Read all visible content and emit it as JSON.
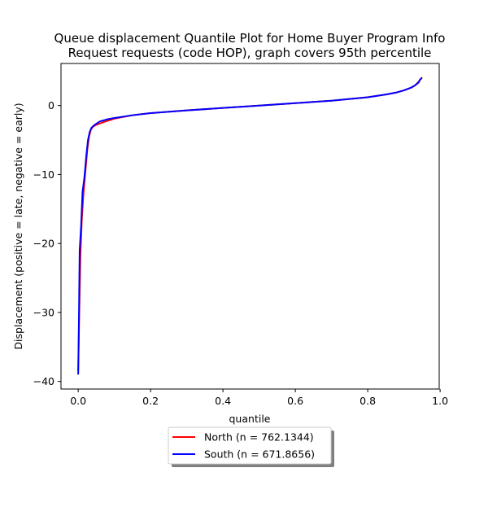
{
  "chart_data": {
    "type": "line",
    "title": [
      "Queue displacement Quantile Plot for Home Buyer Program Info",
      "Request  requests (code HOP), graph covers 95th percentile"
    ],
    "xlabel": "quantile",
    "ylabel": "Displacement (positive = late, negative = early)",
    "xlim": [
      -0.0475,
      0.9975
    ],
    "ylim": [
      -41.1,
      6.1
    ],
    "xticks": [
      0.0,
      0.2,
      0.4,
      0.6,
      0.8,
      1.0
    ],
    "xtick_labels": [
      "0.0",
      "0.2",
      "0.4",
      "0.6",
      "0.8",
      "1.0"
    ],
    "yticks": [
      0,
      -10,
      -20,
      -30,
      -40
    ],
    "ytick_labels": [
      "0",
      "−10",
      "−20",
      "−30",
      "−40"
    ],
    "grid": false,
    "legend_position": "below plot, center",
    "series": [
      {
        "name": "North (n = 762.1344)",
        "color": "#ff0000",
        "x": [
          0.0,
          0.003,
          0.006,
          0.01,
          0.015,
          0.02,
          0.025,
          0.03,
          0.035,
          0.04,
          0.05,
          0.07,
          0.1,
          0.15,
          0.2,
          0.3,
          0.4,
          0.5,
          0.6,
          0.7,
          0.8,
          0.85,
          0.88,
          0.9,
          0.92,
          0.93,
          0.94,
          0.95
        ],
        "y": [
          -38.5,
          -30.0,
          -22.0,
          -16.5,
          -12.5,
          -9.5,
          -6.5,
          -4.5,
          -3.5,
          -3.1,
          -2.8,
          -2.4,
          -1.9,
          -1.4,
          -1.1,
          -0.7,
          -0.35,
          0.0,
          0.35,
          0.7,
          1.2,
          1.6,
          1.9,
          2.2,
          2.6,
          2.9,
          3.4,
          4.1
        ]
      },
      {
        "name": "South (n = 671.8656)",
        "color": "#0000ff",
        "x": [
          0.0,
          0.002,
          0.004,
          0.008,
          0.012,
          0.017,
          0.022,
          0.027,
          0.032,
          0.037,
          0.045,
          0.06,
          0.08,
          0.1,
          0.15,
          0.2,
          0.3,
          0.4,
          0.5,
          0.6,
          0.7,
          0.8,
          0.85,
          0.88,
          0.9,
          0.92,
          0.93,
          0.94,
          0.945,
          0.95
        ],
        "y": [
          -39.0,
          -31.0,
          -21.0,
          -17.5,
          -12.5,
          -10.5,
          -7.5,
          -5.0,
          -3.8,
          -3.2,
          -2.8,
          -2.3,
          -2.0,
          -1.8,
          -1.4,
          -1.1,
          -0.7,
          -0.35,
          0.0,
          0.35,
          0.7,
          1.2,
          1.6,
          1.9,
          2.2,
          2.6,
          2.9,
          3.3,
          3.8,
          4.0
        ]
      }
    ]
  }
}
